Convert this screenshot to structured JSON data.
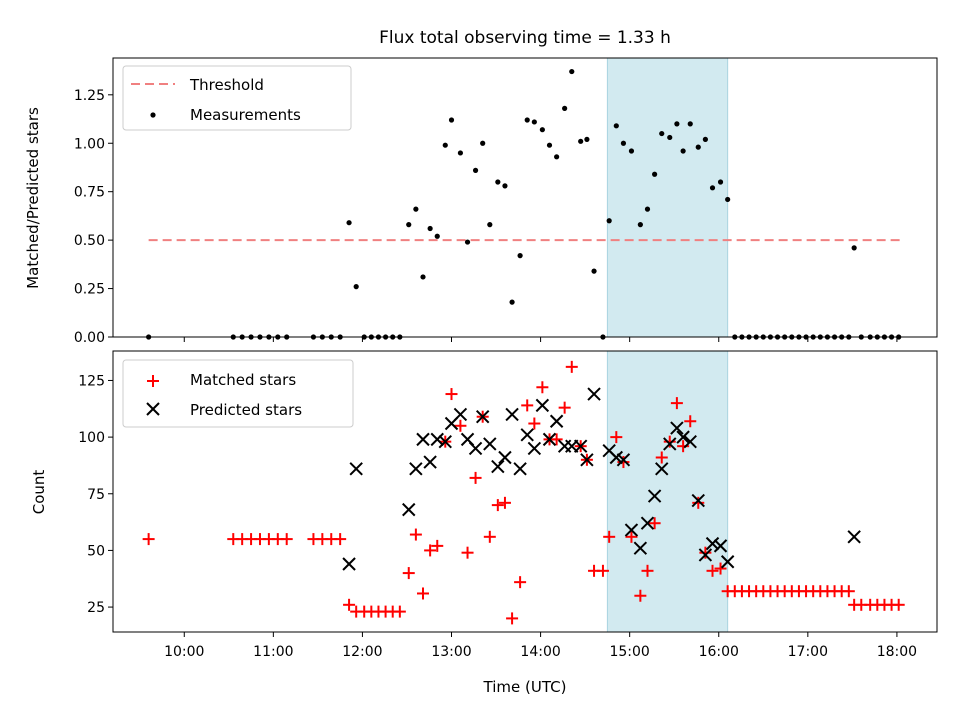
{
  "chart_data": {
    "title": "Flux total observing time = 1.33 h",
    "xlabel": "Time (UTC)",
    "x_ticks": [
      {
        "label": "10:00",
        "t": 10.0
      },
      {
        "label": "11:00",
        "t": 11.0
      },
      {
        "label": "12:00",
        "t": 12.0
      },
      {
        "label": "13:00",
        "t": 13.0
      },
      {
        "label": "14:00",
        "t": 14.0
      },
      {
        "label": "15:00",
        "t": 15.0
      },
      {
        "label": "16:00",
        "t": 16.0
      },
      {
        "label": "17:00",
        "t": 17.0
      },
      {
        "label": "18:00",
        "t": 18.0
      }
    ],
    "xlim": [
      9.2,
      18.45
    ],
    "highlight_span": [
      14.75,
      16.1
    ],
    "highlight_color": "#d2eaf0",
    "panels": [
      {
        "type": "scatter",
        "ylabel": "Matched/Predicted stars",
        "ylim": [
          0.0,
          1.44
        ],
        "y_ticks": [
          "0.00",
          "0.25",
          "0.50",
          "0.75",
          "1.00",
          "1.25"
        ],
        "legend": [
          "Threshold",
          "Measurements"
        ],
        "threshold": {
          "name": "Threshold",
          "value": 0.5,
          "x_range": [
            9.6,
            18.05
          ],
          "color": "#f08080"
        },
        "series": [
          {
            "name": "Measurements",
            "color": "#000000",
            "points": [
              [
                9.6,
                0.0
              ],
              [
                10.55,
                0.0
              ],
              [
                10.65,
                0.0
              ],
              [
                10.75,
                0.0
              ],
              [
                10.85,
                0.0
              ],
              [
                10.95,
                0.0
              ],
              [
                11.05,
                0.0
              ],
              [
                11.15,
                0.0
              ],
              [
                11.45,
                0.0
              ],
              [
                11.55,
                0.0
              ],
              [
                11.65,
                0.0
              ],
              [
                11.75,
                0.0
              ],
              [
                11.85,
                0.59
              ],
              [
                11.93,
                0.26
              ],
              [
                12.02,
                0.0
              ],
              [
                12.1,
                0.0
              ],
              [
                12.18,
                0.0
              ],
              [
                12.26,
                0.0
              ],
              [
                12.34,
                0.0
              ],
              [
                12.42,
                0.0
              ],
              [
                12.52,
                0.58
              ],
              [
                12.6,
                0.66
              ],
              [
                12.68,
                0.31
              ],
              [
                12.76,
                0.56
              ],
              [
                12.84,
                0.52
              ],
              [
                12.93,
                0.99
              ],
              [
                13.0,
                1.12
              ],
              [
                13.1,
                0.95
              ],
              [
                13.18,
                0.49
              ],
              [
                13.27,
                0.86
              ],
              [
                13.35,
                1.0
              ],
              [
                13.43,
                0.58
              ],
              [
                13.52,
                0.8
              ],
              [
                13.6,
                0.78
              ],
              [
                13.68,
                0.18
              ],
              [
                13.77,
                0.42
              ],
              [
                13.85,
                1.12
              ],
              [
                13.93,
                1.11
              ],
              [
                14.02,
                1.07
              ],
              [
                14.1,
                0.99
              ],
              [
                14.18,
                0.93
              ],
              [
                14.27,
                1.18
              ],
              [
                14.35,
                1.37
              ],
              [
                14.45,
                1.01
              ],
              [
                14.52,
                1.02
              ],
              [
                14.6,
                0.34
              ],
              [
                14.7,
                0.0
              ],
              [
                14.77,
                0.6
              ],
              [
                14.85,
                1.09
              ],
              [
                14.93,
                1.0
              ],
              [
                15.02,
                0.96
              ],
              [
                15.12,
                0.58
              ],
              [
                15.2,
                0.66
              ],
              [
                15.28,
                0.84
              ],
              [
                15.36,
                1.05
              ],
              [
                15.45,
                1.03
              ],
              [
                15.53,
                1.1
              ],
              [
                15.6,
                0.96
              ],
              [
                15.68,
                1.1
              ],
              [
                15.77,
                0.98
              ],
              [
                15.85,
                1.02
              ],
              [
                15.93,
                0.77
              ],
              [
                16.02,
                0.8
              ],
              [
                16.1,
                0.71
              ],
              [
                16.18,
                0.0
              ],
              [
                16.26,
                0.0
              ],
              [
                16.34,
                0.0
              ],
              [
                16.42,
                0.0
              ],
              [
                16.5,
                0.0
              ],
              [
                16.58,
                0.0
              ],
              [
                16.66,
                0.0
              ],
              [
                16.74,
                0.0
              ],
              [
                16.82,
                0.0
              ],
              [
                16.9,
                0.0
              ],
              [
                16.98,
                0.0
              ],
              [
                17.06,
                0.0
              ],
              [
                17.14,
                0.0
              ],
              [
                17.22,
                0.0
              ],
              [
                17.3,
                0.0
              ],
              [
                17.38,
                0.0
              ],
              [
                17.46,
                0.0
              ],
              [
                17.52,
                0.46
              ],
              [
                17.6,
                0.0
              ],
              [
                17.7,
                0.0
              ],
              [
                17.78,
                0.0
              ],
              [
                17.86,
                0.0
              ],
              [
                17.94,
                0.0
              ],
              [
                18.02,
                0.0
              ]
            ]
          }
        ]
      },
      {
        "type": "scatter",
        "ylabel": "Count",
        "ylim": [
          14,
          138
        ],
        "y_ticks": [
          "25",
          "50",
          "75",
          "100",
          "125"
        ],
        "legend": [
          "Matched stars",
          "Predicted stars"
        ],
        "series": [
          {
            "name": "Matched stars",
            "marker": "+",
            "color": "#ff0000",
            "points": [
              [
                9.6,
                55
              ],
              [
                10.55,
                55
              ],
              [
                10.65,
                55
              ],
              [
                10.75,
                55
              ],
              [
                10.85,
                55
              ],
              [
                10.95,
                55
              ],
              [
                11.05,
                55
              ],
              [
                11.15,
                55
              ],
              [
                11.45,
                55
              ],
              [
                11.55,
                55
              ],
              [
                11.65,
                55
              ],
              [
                11.75,
                55
              ],
              [
                11.85,
                26
              ],
              [
                11.93,
                23
              ],
              [
                12.02,
                23
              ],
              [
                12.1,
                23
              ],
              [
                12.18,
                23
              ],
              [
                12.26,
                23
              ],
              [
                12.34,
                23
              ],
              [
                12.42,
                23
              ],
              [
                12.52,
                40
              ],
              [
                12.6,
                57
              ],
              [
                12.68,
                31
              ],
              [
                12.76,
                50
              ],
              [
                12.84,
                52
              ],
              [
                12.93,
                98
              ],
              [
                13.0,
                119
              ],
              [
                13.1,
                105
              ],
              [
                13.18,
                49
              ],
              [
                13.27,
                82
              ],
              [
                13.35,
                109
              ],
              [
                13.43,
                56
              ],
              [
                13.52,
                70
              ],
              [
                13.6,
                71
              ],
              [
                13.68,
                20
              ],
              [
                13.77,
                36
              ],
              [
                13.85,
                114
              ],
              [
                13.93,
                106
              ],
              [
                14.02,
                122
              ],
              [
                14.1,
                99
              ],
              [
                14.18,
                99
              ],
              [
                14.27,
                113
              ],
              [
                14.35,
                131
              ],
              [
                14.45,
                96
              ],
              [
                14.52,
                90
              ],
              [
                14.6,
                41
              ],
              [
                14.7,
                41
              ],
              [
                14.77,
                56
              ],
              [
                14.85,
                100
              ],
              [
                14.93,
                89
              ],
              [
                15.02,
                56
              ],
              [
                15.12,
                30
              ],
              [
                15.2,
                41
              ],
              [
                15.28,
                62
              ],
              [
                15.36,
                91
              ],
              [
                15.45,
                98
              ],
              [
                15.53,
                115
              ],
              [
                15.6,
                96
              ],
              [
                15.68,
                107
              ],
              [
                15.77,
                71
              ],
              [
                15.85,
                49
              ],
              [
                15.93,
                41
              ],
              [
                16.02,
                42
              ],
              [
                16.1,
                32
              ],
              [
                16.18,
                32
              ],
              [
                16.26,
                32
              ],
              [
                16.34,
                32
              ],
              [
                16.42,
                32
              ],
              [
                16.5,
                32
              ],
              [
                16.58,
                32
              ],
              [
                16.66,
                32
              ],
              [
                16.74,
                32
              ],
              [
                16.82,
                32
              ],
              [
                16.9,
                32
              ],
              [
                16.98,
                32
              ],
              [
                17.06,
                32
              ],
              [
                17.14,
                32
              ],
              [
                17.22,
                32
              ],
              [
                17.3,
                32
              ],
              [
                17.38,
                32
              ],
              [
                17.46,
                32
              ],
              [
                17.52,
                26
              ],
              [
                17.6,
                26
              ],
              [
                17.7,
                26
              ],
              [
                17.78,
                26
              ],
              [
                17.86,
                26
              ],
              [
                17.94,
                26
              ],
              [
                18.02,
                26
              ]
            ]
          },
          {
            "name": "Predicted stars",
            "marker": "x",
            "color": "#000000",
            "points": [
              [
                11.85,
                44
              ],
              [
                11.93,
                86
              ],
              [
                12.52,
                68
              ],
              [
                12.6,
                86
              ],
              [
                12.68,
                99
              ],
              [
                12.76,
                89
              ],
              [
                12.84,
                99
              ],
              [
                12.93,
                98
              ],
              [
                13.0,
                106
              ],
              [
                13.1,
                110
              ],
              [
                13.18,
                99
              ],
              [
                13.27,
                95
              ],
              [
                13.35,
                109
              ],
              [
                13.43,
                97
              ],
              [
                13.52,
                87
              ],
              [
                13.6,
                91
              ],
              [
                13.68,
                110
              ],
              [
                13.77,
                86
              ],
              [
                13.85,
                101
              ],
              [
                13.93,
                95
              ],
              [
                14.02,
                114
              ],
              [
                14.1,
                99
              ],
              [
                14.18,
                107
              ],
              [
                14.27,
                96
              ],
              [
                14.35,
                96
              ],
              [
                14.45,
                96
              ],
              [
                14.52,
                90
              ],
              [
                14.6,
                119
              ],
              [
                14.77,
                94
              ],
              [
                14.85,
                91
              ],
              [
                14.93,
                90
              ],
              [
                15.02,
                59
              ],
              [
                15.12,
                51
              ],
              [
                15.2,
                62
              ],
              [
                15.28,
                74
              ],
              [
                15.36,
                86
              ],
              [
                15.45,
                97
              ],
              [
                15.53,
                104
              ],
              [
                15.6,
                100
              ],
              [
                15.68,
                98
              ],
              [
                15.77,
                72
              ],
              [
                15.85,
                48
              ],
              [
                15.93,
                53
              ],
              [
                16.02,
                52
              ],
              [
                16.1,
                45
              ],
              [
                17.52,
                56
              ]
            ]
          }
        ]
      }
    ]
  }
}
